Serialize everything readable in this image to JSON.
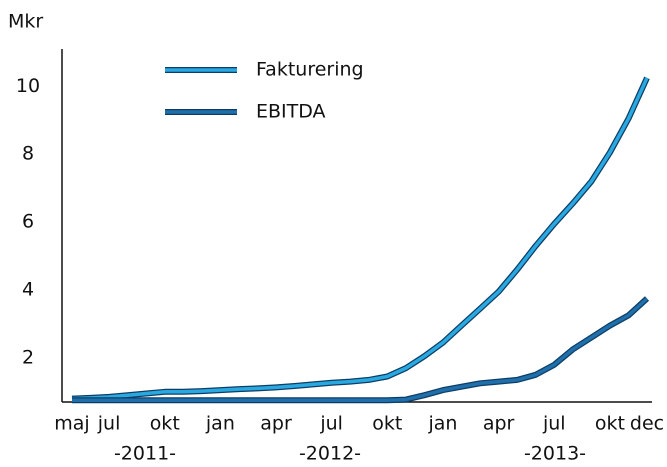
{
  "chart_data": {
    "type": "line",
    "y_label": "Mkr",
    "categories": [
      "maj",
      null,
      "jul",
      null,
      null,
      "okt",
      null,
      null,
      "jan",
      null,
      null,
      "apr",
      null,
      null,
      "jul",
      null,
      null,
      "okt",
      null,
      null,
      "jan",
      null,
      null,
      "apr",
      null,
      null,
      "jul",
      null,
      null,
      "okt",
      null,
      "dec"
    ],
    "annotations": [
      "-2011-",
      "-2012-",
      "-2013-"
    ],
    "series": [
      {
        "name": "Fakturering",
        "color": "#2aa8e0",
        "values": [
          0.8,
          0.82,
          0.85,
          0.9,
          0.95,
          1.0,
          1.0,
          1.02,
          1.05,
          1.08,
          1.1,
          1.13,
          1.17,
          1.22,
          1.27,
          1.3,
          1.35,
          1.45,
          1.7,
          2.05,
          2.45,
          2.95,
          3.45,
          3.95,
          4.6,
          5.3,
          5.95,
          6.55,
          7.2,
          8.05,
          9.05,
          10.25
        ]
      },
      {
        "name": "EBITDA",
        "color": "#1f6fab",
        "values": [
          0.75,
          0.75,
          0.75,
          0.75,
          0.75,
          0.75,
          0.75,
          0.75,
          0.75,
          0.75,
          0.75,
          0.75,
          0.75,
          0.75,
          0.75,
          0.75,
          0.75,
          0.75,
          0.77,
          0.9,
          1.05,
          1.15,
          1.25,
          1.3,
          1.35,
          1.5,
          1.8,
          2.25,
          2.6,
          2.95,
          3.25,
          3.75
        ]
      }
    ],
    "ylim": [
      0.7,
      11.1
    ],
    "yticks": [
      2,
      4,
      6,
      8,
      10
    ],
    "grid": false
  }
}
